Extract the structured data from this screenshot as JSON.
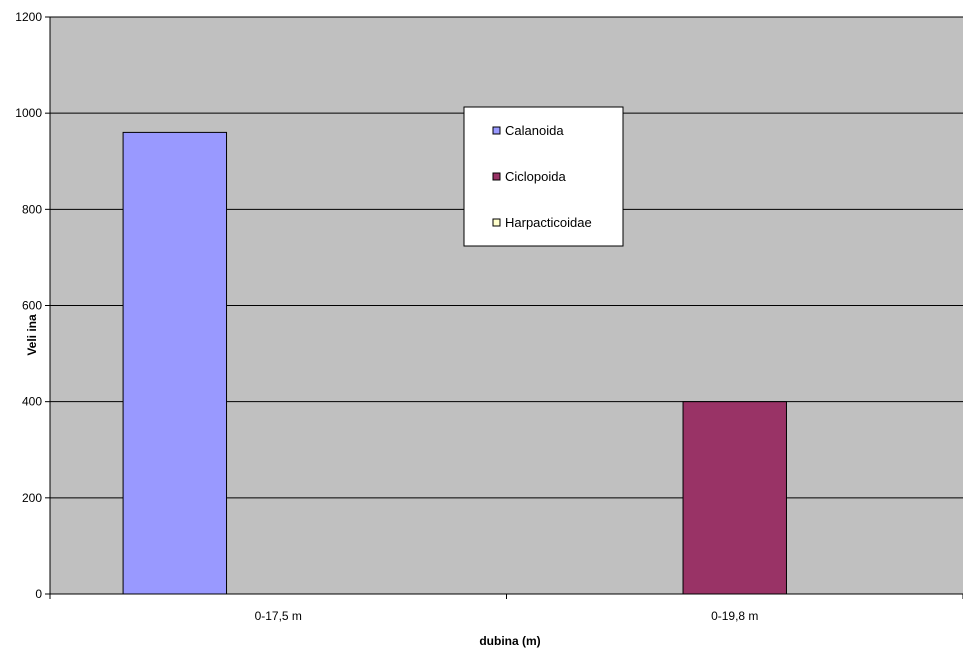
{
  "chart_data": {
    "type": "bar",
    "categories": [
      "0-17,5 m",
      "0-19,8 m"
    ],
    "series": [
      {
        "name": "Calanoida",
        "values": [
          960,
          0
        ],
        "color": "#9999FF"
      },
      {
        "name": "Ciclopoida",
        "values": [
          0,
          400
        ],
        "color": "#993366"
      },
      {
        "name": "Harpacticoidae",
        "values": [
          0,
          0
        ],
        "color": "#FFFFCC"
      }
    ],
    "xlabel": "dubina (m)",
    "ylabel": "Veli ina",
    "ylim": [
      0,
      1200
    ],
    "yticks": [
      "0",
      "200",
      "400",
      "600",
      "800",
      "1000",
      "1200"
    ],
    "grid": true,
    "legend_position": "top-center",
    "plot_background": "#C0C0C0"
  }
}
